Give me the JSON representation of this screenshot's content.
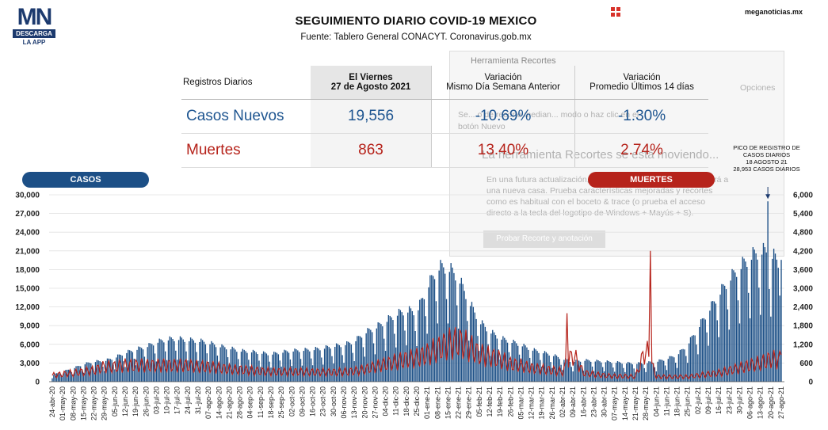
{
  "logo": {
    "mark": "MN",
    "bar": "DESCARGA",
    "sub": "LA APP"
  },
  "brand": "meganoticias.mx",
  "title": "SEGUIMIENTO DIARIO COVID-19 MEXICO",
  "subtitle": "Fuente: Tablero General CONACYT. Coronavirus.gob.mx",
  "overlay": {
    "title": "Herramienta Recortes",
    "options": "Opciones",
    "line1": "Se... o de recorte median... modo o haz clic en el",
    "line2": "botón Nuevo",
    "big": "La herramienta Recortes se está moviendo...",
    "line3": "En una futura actualización, la herramienta Recortes se moverá a",
    "line4": "una nueva casa. Prueba características mejoradas y recortes",
    "line5": "como es habitual con el boceto & trace (o prueba el acceso",
    "line6": "directo a la tecla del logotipo de Windows + Mayús + S).",
    "button": "Probar Recorte y anotación"
  },
  "table": {
    "h0": "Registros Diarios",
    "h1a": "El Viernes",
    "h1b": "27 de Agosto 2021",
    "h2a": "Variación",
    "h2b": "Mismo Día Semana Anterior",
    "h3a": "Variación",
    "h3b": "Promedio Últimos 14 días",
    "rows": [
      {
        "label": "Casos Nuevos",
        "value": "19,556",
        "var_week": "-10.69%",
        "var_avg": "-1.30%"
      },
      {
        "label": "Muertes",
        "value": "863",
        "var_week": "13.40%",
        "var_avg": "2.74%"
      }
    ]
  },
  "pills": {
    "casos": "CASOS",
    "muertes": "MUERTES"
  },
  "peak": {
    "l1": "PICO DE REGISTRO DE",
    "l2": "CASOS DIARIOS",
    "l3": "18 AGOSTO 21",
    "l4": "28,953 CASOS DIARIOS"
  },
  "colors": {
    "cases": "#1c4f86",
    "deaths": "#b6231b"
  },
  "chart_data": {
    "type": "bar",
    "title": "",
    "left_axis": {
      "label": "CASOS",
      "ticks": [
        "0",
        "3,000",
        "6,000",
        "9,000",
        "12,000",
        "15,000",
        "18,000",
        "21,000",
        "24,000",
        "27,000",
        "30,000"
      ],
      "ylim": [
        0,
        30000
      ]
    },
    "right_axis": {
      "label": "MUERTES",
      "ticks": [
        "0",
        "600",
        "1,200",
        "1,800",
        "2,400",
        "3,000",
        "3,600",
        "4,200",
        "4,800",
        "5,400",
        "6,000"
      ],
      "ylim": [
        0,
        6000
      ]
    },
    "x_labels": [
      "24-abr-20",
      "01-may-20",
      "08-may-20",
      "15-may-20",
      "22-may-20",
      "29-may-20",
      "05-jun-20",
      "12-jun-20",
      "19-jun-20",
      "26-jun-20",
      "03-jul-20",
      "10-jul-20",
      "17-jul-20",
      "24-jul-20",
      "31-jul-20",
      "07-ago-20",
      "14-ago-20",
      "21-ago-20",
      "28-ago-20",
      "04-sep-20",
      "11-sep-20",
      "18-sep-20",
      "25-sep-20",
      "02-oct-20",
      "09-oct-20",
      "16-oct-20",
      "23-oct-20",
      "30-oct-20",
      "06-nov-20",
      "13-nov-20",
      "20-nov-20",
      "27-nov-20",
      "04-dic-20",
      "11-dic-20",
      "18-dic-20",
      "25-dic-20",
      "01-ene-21",
      "08-ene-21",
      "15-ene-21",
      "22-ene-21",
      "29-ene-21",
      "05-feb-21",
      "12-feb-21",
      "19-feb-21",
      "26-feb-21",
      "05-mar-21",
      "12-mar-21",
      "19-mar-21",
      "26-mar-21",
      "02-abr-21",
      "09-abr-21",
      "16-abr-21",
      "23-abr-21",
      "30-abr-21",
      "07-may-21",
      "14-may-21",
      "21-may-21",
      "28-may-21",
      "04-jun-21",
      "11-jun-21",
      "18-jun-21",
      "25-jun-21",
      "02-jul-21",
      "09-jul-21",
      "16-jul-21",
      "23-jul-21",
      "30-jul-21",
      "06-ago-21",
      "13-ago-21",
      "20-ago-21",
      "27-ago-21"
    ],
    "series": [
      {
        "name": "Casos",
        "axis": "left",
        "type": "bar",
        "weekly_avg": [
          1000,
          1500,
          2000,
          2600,
          3000,
          3100,
          3600,
          4300,
          4800,
          5200,
          5900,
          6300,
          6400,
          6200,
          6100,
          5800,
          5300,
          5000,
          4600,
          4500,
          4300,
          4100,
          4400,
          4600,
          4700,
          4800,
          5000,
          5300,
          5500,
          6000,
          7300,
          8000,
          9000,
          10000,
          10600,
          10400,
          14000,
          17000,
          17000,
          15500,
          12000,
          9000,
          7500,
          6500,
          6000,
          5500,
          4800,
          4400,
          4000,
          3400,
          3000,
          3200,
          3100,
          3000,
          2900,
          2800,
          2700,
          2800,
          3000,
          3400,
          4000,
          5500,
          8000,
          10500,
          13000,
          15200,
          17000,
          18500,
          19500,
          19000,
          17500
        ],
        "daily_peak": {
          "date": "18-ago-21",
          "value": 28953
        },
        "last_value": 19556
      },
      {
        "name": "Muertes",
        "axis": "right",
        "type": "line",
        "weekly_avg": [
          250,
          300,
          350,
          400,
          450,
          600,
          600,
          650,
          650,
          650,
          650,
          650,
          650,
          650,
          600,
          600,
          550,
          500,
          480,
          450,
          420,
          400,
          400,
          400,
          400,
          380,
          380,
          380,
          400,
          420,
          500,
          600,
          700,
          800,
          900,
          950,
          1100,
          1300,
          1500,
          1600,
          1400,
          1100,
          1000,
          900,
          700,
          650,
          550,
          500,
          450,
          400,
          1100,
          350,
          300,
          250,
          220,
          220,
          200,
          1300,
          200,
          200,
          200,
          200,
          250,
          300,
          350,
          450,
          550,
          650,
          750,
          900,
          863
        ],
        "spikes": [
          {
            "date": "05-abr-21",
            "value": 2200
          },
          {
            "date": "31-may-21",
            "value": 4200
          }
        ]
      }
    ],
    "annotation": "PICO DE REGISTRO DE CASOS DIARIOS 18 AGOSTO 21 28,953 CASOS DIARIOS"
  }
}
